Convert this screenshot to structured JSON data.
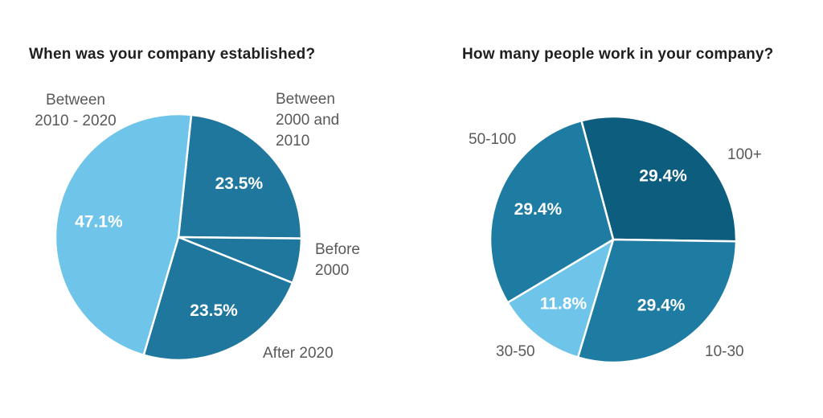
{
  "colors": {
    "background": "#ffffff",
    "title_text": "#1f1f1f",
    "label_text": "#595959",
    "pct_text": "#ffffff",
    "slice_separator": "#ffffff",
    "teal_dark": "#0d5d7e",
    "teal_medium": "#1e7ba2",
    "teal_medium_left": "#20779d",
    "blue_light": "#6ec5e9"
  },
  "chart_data": [
    {
      "type": "pie",
      "title": "When was your company established?",
      "labels": [
        "Between\n2000 and\n2010",
        "Before\n2000",
        "After 2020",
        "Between\n2010 - 2020"
      ],
      "values": [
        23.5,
        5.9,
        23.5,
        47.1
      ],
      "pct_labels": [
        "23.5%",
        "",
        "23.5%",
        "47.1%"
      ],
      "colors": [
        "#20779d",
        "#20779d",
        "#20779d",
        "#6ec5e9"
      ],
      "ids": [
        "between-2000-and-2010",
        "before-2000",
        "after-2020",
        "between-2010-2020"
      ],
      "start_angle_deg": 6,
      "units": "percent",
      "legend": "none"
    },
    {
      "type": "pie",
      "title": "How many people work in your company?",
      "labels": [
        "100+",
        "10-30",
        "30-50",
        "50-100"
      ],
      "values": [
        29.4,
        29.4,
        11.8,
        29.4
      ],
      "pct_labels": [
        "29.4%",
        "29.4%",
        "11.8%",
        "29.4%"
      ],
      "colors": [
        "#0d5d7e",
        "#1e7ba2",
        "#6ec5e9",
        "#1e7ba2"
      ],
      "ids": [
        "100-plus",
        "10-30",
        "30-50",
        "50-100"
      ],
      "start_angle_deg": -15,
      "units": "percent",
      "legend": "none"
    }
  ]
}
